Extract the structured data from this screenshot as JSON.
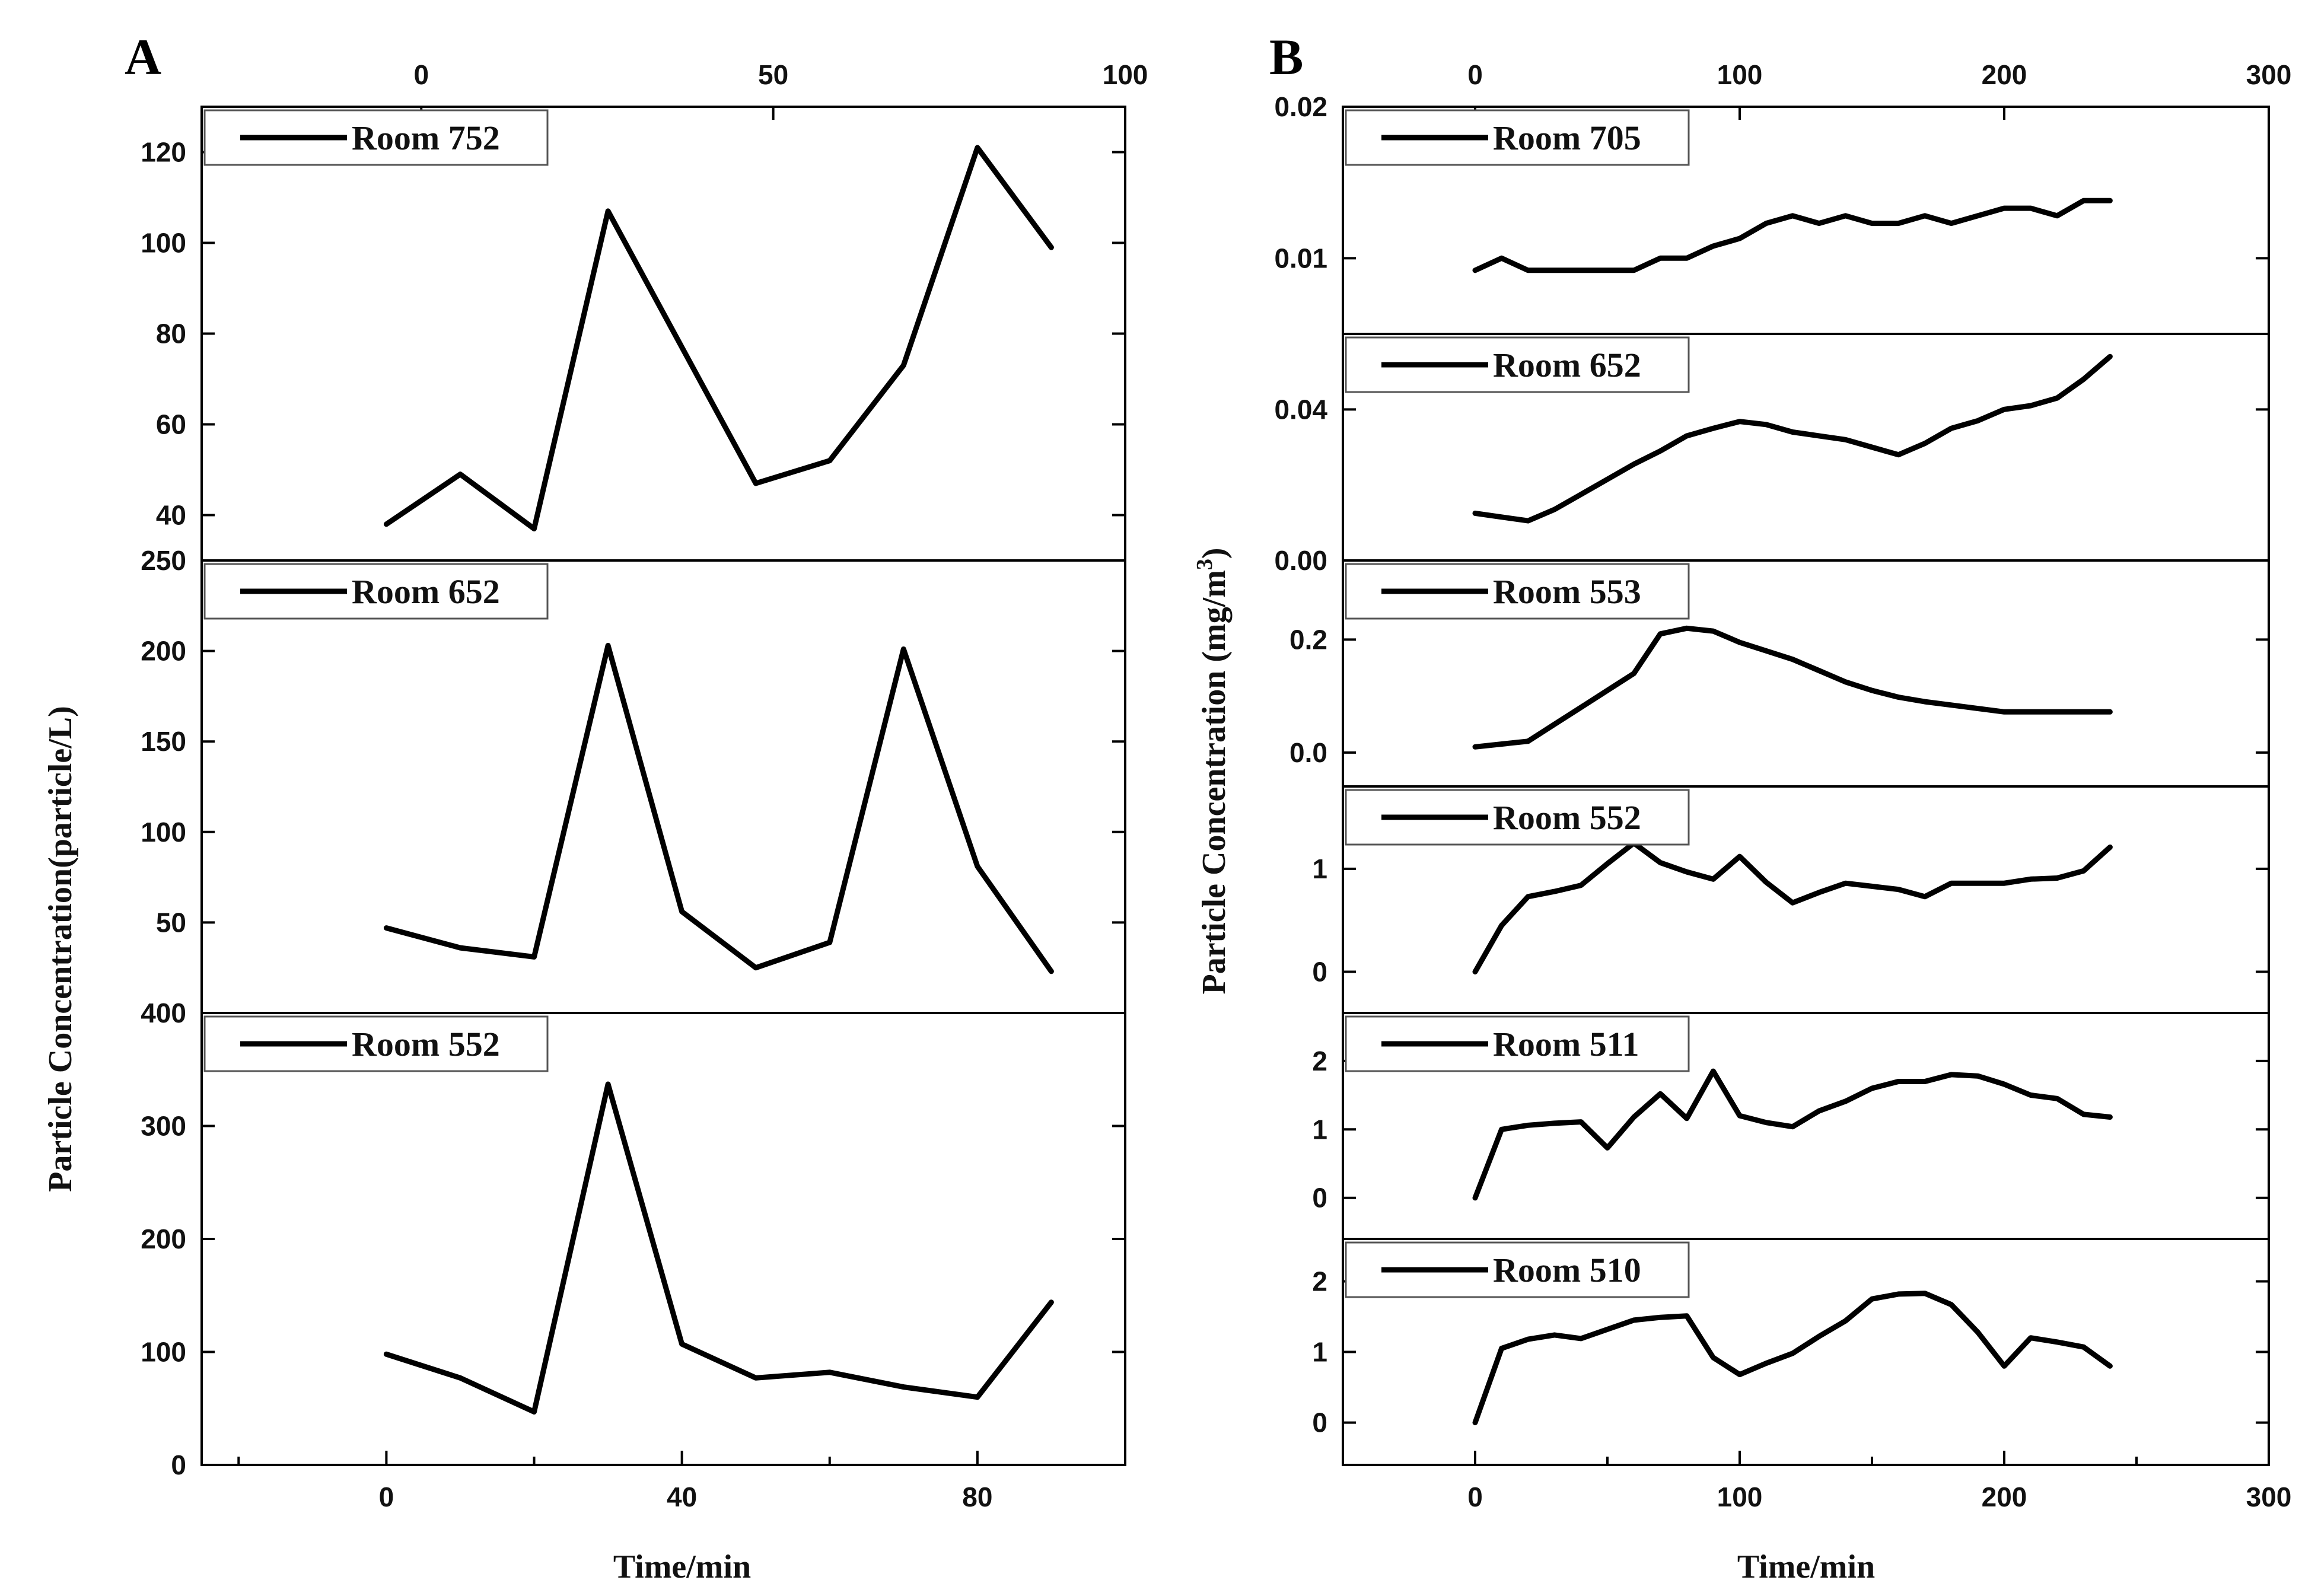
{
  "panels": [
    {
      "letter": "A",
      "xlabel": "Time/min",
      "ylabel": "Particle Concentration(particle/L)",
      "x_bottom_ticks": [
        "0",
        "40",
        "80"
      ],
      "x_top_ticks": [
        "0",
        "50",
        "100"
      ]
    },
    {
      "letter": "B",
      "xlabel": "Time/min",
      "ylabel_main": "Particle Concentration (mg/m",
      "ylabel_sup": "3",
      "ylabel_close": ")",
      "x_bottom_ticks": [
        "0",
        "100",
        "200",
        "300"
      ],
      "x_top_ticks": [
        "0",
        "100",
        "200",
        "300"
      ]
    }
  ],
  "chart_data": [
    {
      "type": "line",
      "panel": "A",
      "xlim": [
        -25,
        100
      ],
      "xlabel": "Time/min",
      "ylabel": "Particle Concentration(particle/L)",
      "subplots": [
        {
          "name": "Room 752",
          "ylim": [
            30,
            130
          ],
          "yticks": [
            40,
            60,
            80,
            100,
            120
          ],
          "ytick_labels": [
            "40",
            "60",
            "80",
            "100",
            "120"
          ],
          "x": [
            0,
            10,
            20,
            30,
            40,
            50,
            60,
            70,
            80,
            90
          ],
          "y": [
            38,
            49,
            37,
            107,
            77,
            47,
            52,
            73,
            121,
            99
          ]
        },
        {
          "name": "Room 652",
          "ylim": [
            0,
            250
          ],
          "yticks": [
            50,
            100,
            150,
            200,
            250
          ],
          "ytick_labels": [
            "50",
            "100",
            "150",
            "200",
            "250"
          ],
          "x": [
            0,
            10,
            20,
            30,
            40,
            50,
            60,
            70,
            80,
            90
          ],
          "y": [
            47,
            36,
            31,
            203,
            56,
            25,
            39,
            201,
            81,
            23
          ]
        },
        {
          "name": "Room 552",
          "ylim": [
            0,
            400
          ],
          "yticks": [
            0,
            100,
            200,
            300,
            400
          ],
          "ytick_labels": [
            "0",
            "100",
            "200",
            "300",
            "400"
          ],
          "x": [
            0,
            10,
            20,
            30,
            40,
            50,
            60,
            70,
            80,
            90
          ],
          "y": [
            98,
            77,
            47,
            337,
            107,
            77,
            82,
            69,
            60,
            144
          ]
        }
      ]
    },
    {
      "type": "line",
      "panel": "B",
      "xlim": [
        -50,
        300
      ],
      "xlabel": "Time/min",
      "ylabel": "Particle Concentration (mg/m3)",
      "subplots": [
        {
          "name": "Room 705",
          "ylim": [
            0.005,
            0.02
          ],
          "yticks": [
            0.01,
            0.02
          ],
          "ytick_labels": [
            "0.01",
            "0.02"
          ],
          "x": [
            0,
            10,
            20,
            30,
            40,
            50,
            60,
            70,
            80,
            90,
            100,
            110,
            120,
            130,
            140,
            150,
            160,
            170,
            180,
            190,
            200,
            210,
            220,
            230,
            240
          ],
          "y": [
            0.0092,
            0.01,
            0.0092,
            0.0092,
            0.0092,
            0.0092,
            0.0092,
            0.01,
            0.01,
            0.0108,
            0.0113,
            0.0123,
            0.0128,
            0.0123,
            0.0128,
            0.0123,
            0.0123,
            0.0128,
            0.0123,
            0.0128,
            0.0133,
            0.0133,
            0.0128,
            0.0138,
            0.0138
          ]
        },
        {
          "name": "Room 652",
          "ylim": [
            0.0,
            0.06
          ],
          "yticks": [
            0.0,
            0.04
          ],
          "ytick_labels": [
            "0.00",
            "0.04"
          ],
          "x": [
            0,
            10,
            20,
            30,
            40,
            50,
            60,
            70,
            80,
            90,
            100,
            110,
            120,
            130,
            140,
            150,
            160,
            170,
            180,
            190,
            200,
            210,
            220,
            230,
            240
          ],
          "y": [
            0.0125,
            0.0115,
            0.0105,
            0.0135,
            0.0175,
            0.0215,
            0.0255,
            0.029,
            0.033,
            0.035,
            0.0368,
            0.036,
            0.034,
            0.033,
            0.032,
            0.03,
            0.028,
            0.031,
            0.035,
            0.037,
            0.04,
            0.041,
            0.043,
            0.048,
            0.054
          ]
        },
        {
          "name": "Room 553",
          "ylim": [
            -0.06,
            0.34
          ],
          "yticks": [
            0.0,
            0.2
          ],
          "ytick_labels": [
            "0.0",
            "0.2"
          ],
          "x": [
            0,
            20,
            30,
            40,
            50,
            60,
            70,
            80,
            90,
            100,
            110,
            120,
            130,
            140,
            150,
            160,
            170,
            180,
            190,
            200,
            210,
            220,
            230,
            240
          ],
          "y": [
            0.01,
            0.02,
            0.05,
            0.08,
            0.11,
            0.14,
            0.21,
            0.22,
            0.215,
            0.195,
            0.18,
            0.165,
            0.145,
            0.125,
            0.11,
            0.098,
            0.09,
            0.084,
            0.078,
            0.072,
            0.072,
            0.072,
            0.072,
            0.072
          ]
        },
        {
          "name": "Room 552",
          "ylim": [
            -0.4,
            1.8
          ],
          "yticks": [
            0,
            1
          ],
          "ytick_labels": [
            "0",
            "1"
          ],
          "x": [
            0,
            10,
            20,
            30,
            40,
            50,
            60,
            70,
            80,
            90,
            100,
            110,
            120,
            130,
            140,
            150,
            160,
            170,
            180,
            190,
            200,
            210,
            220,
            230,
            240
          ],
          "y": [
            0.0,
            0.45,
            0.73,
            0.78,
            0.84,
            1.05,
            1.25,
            1.06,
            0.97,
            0.9,
            1.12,
            0.87,
            0.67,
            0.77,
            0.86,
            0.83,
            0.8,
            0.73,
            0.86,
            0.86,
            0.86,
            0.9,
            0.91,
            0.98,
            1.21
          ]
        },
        {
          "name": "Room 511",
          "ylim": [
            -0.6,
            2.7
          ],
          "yticks": [
            0,
            1,
            2
          ],
          "ytick_labels": [
            "0",
            "1",
            "2"
          ],
          "x": [
            0,
            10,
            20,
            30,
            40,
            50,
            60,
            70,
            80,
            90,
            100,
            110,
            120,
            130,
            140,
            150,
            160,
            170,
            180,
            190,
            200,
            210,
            220,
            230,
            240
          ],
          "y": [
            0.0,
            1.0,
            1.06,
            1.09,
            1.11,
            0.73,
            1.18,
            1.52,
            1.16,
            1.85,
            1.2,
            1.1,
            1.04,
            1.27,
            1.41,
            1.6,
            1.7,
            1.7,
            1.8,
            1.78,
            1.66,
            1.5,
            1.45,
            1.22,
            1.18
          ]
        },
        {
          "name": "Room 510",
          "ylim": [
            -0.6,
            2.6
          ],
          "yticks": [
            0,
            1,
            2
          ],
          "ytick_labels": [
            "0",
            "1",
            "2"
          ],
          "x": [
            0,
            10,
            20,
            30,
            40,
            50,
            60,
            70,
            80,
            90,
            100,
            110,
            120,
            130,
            140,
            150,
            160,
            170,
            180,
            190,
            200,
            210,
            220,
            230,
            240
          ],
          "y": [
            0.0,
            1.05,
            1.18,
            1.24,
            1.19,
            1.32,
            1.45,
            1.49,
            1.51,
            0.92,
            0.68,
            0.84,
            0.98,
            1.22,
            1.44,
            1.75,
            1.82,
            1.83,
            1.67,
            1.28,
            0.8,
            1.2,
            1.14,
            1.07,
            0.8
          ]
        }
      ]
    }
  ]
}
